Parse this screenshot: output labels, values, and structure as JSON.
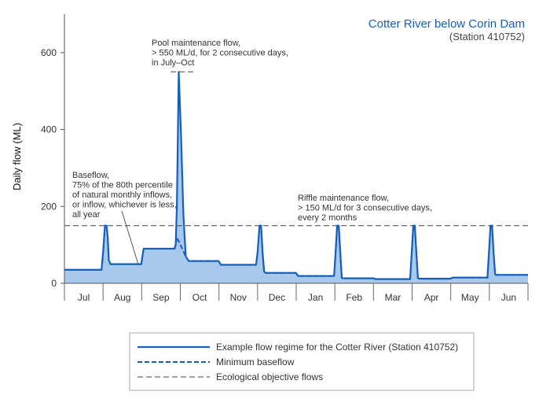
{
  "chart_data": {
    "type": "area",
    "title": "Cotter River below Corin Dam",
    "subtitle": "(Station 410752)",
    "ylabel": "Daily flow (ML)",
    "xlabel": "",
    "ylim": [
      0,
      700
    ],
    "yticks": [
      0,
      200,
      400,
      600
    ],
    "months": [
      "Jul",
      "Aug",
      "Sep",
      "Oct",
      "Nov",
      "Dec",
      "Jan",
      "Feb",
      "Mar",
      "Apr",
      "May",
      "Jun"
    ],
    "grid": false,
    "legend_position": "bottom",
    "colors": {
      "flow_line": "#1560bd",
      "flow_fill": "#a8c8ec",
      "baseline": "#1560bd",
      "objective": "#444444",
      "title": "#1560bd"
    },
    "series": [
      {
        "name": "Example flow regime for the Cotter River (Station 410752)",
        "style": "solid",
        "x": [
          0,
          0.5,
          0.96,
          1.0,
          1.05,
          1.09,
          1.12,
          1.15,
          1.19,
          1.25,
          1.5,
          1.99,
          2.05,
          2.5,
          2.85,
          2.88,
          2.91,
          2.96,
          3.02,
          3.08,
          3.14,
          3.22,
          3.3,
          3.5,
          3.99,
          4.05,
          4.5,
          4.96,
          5.0,
          5.05,
          5.09,
          5.13,
          5.17,
          5.21,
          5.5,
          5.99,
          6.05,
          6.5,
          6.98,
          7.02,
          7.06,
          7.1,
          7.14,
          7.18,
          7.22,
          7.5,
          7.99,
          8.05,
          8.5,
          8.95,
          8.99,
          9.03,
          9.07,
          9.11,
          9.15,
          9.19,
          9.5,
          9.99,
          10.05,
          10.5,
          10.95,
          10.99,
          11.03,
          11.07,
          11.11,
          11.15,
          11.19,
          11.5,
          12
        ],
        "y": [
          35,
          35,
          35,
          80,
          150,
          150,
          120,
          60,
          50,
          50,
          50,
          50,
          90,
          90,
          90,
          100,
          200,
          550,
          380,
          180,
          70,
          58,
          58,
          58,
          58,
          48,
          48,
          48,
          80,
          150,
          150,
          80,
          30,
          27,
          27,
          27,
          19,
          19,
          19,
          80,
          150,
          150,
          80,
          14,
          13,
          13,
          13,
          11,
          11,
          11,
          80,
          150,
          150,
          80,
          13,
          12,
          12,
          12,
          15,
          15,
          15,
          80,
          150,
          150,
          80,
          23,
          22,
          22,
          22
        ]
      },
      {
        "name": "Minimum baseflow",
        "style": "dashed",
        "x": [
          0,
          0.5,
          0.96,
          1.0,
          1.05,
          1.09,
          1.12,
          1.15,
          1.19,
          1.25,
          1.5,
          1.99,
          2.05,
          2.5,
          2.85,
          2.88,
          2.91,
          3.14,
          3.22,
          3.3,
          3.5,
          3.99,
          4.05,
          4.5,
          4.96,
          5.0,
          5.05,
          5.09,
          5.13,
          5.17,
          5.21,
          5.5,
          5.99,
          6.05,
          6.5,
          6.98,
          7.02,
          7.06,
          7.1,
          7.14,
          7.18,
          7.22,
          7.5,
          7.99,
          8.05,
          8.5,
          8.95,
          8.99,
          9.03,
          9.07,
          9.11,
          9.15,
          9.19,
          9.5,
          9.99,
          10.05,
          10.5,
          10.95,
          10.99,
          11.03,
          11.07,
          11.11,
          11.15,
          11.19,
          11.5,
          12
        ],
        "y": [
          35,
          35,
          35,
          80,
          150,
          150,
          120,
          60,
          50,
          50,
          50,
          50,
          90,
          90,
          90,
          100,
          120,
          70,
          58,
          58,
          58,
          58,
          48,
          48,
          48,
          80,
          150,
          150,
          80,
          30,
          27,
          27,
          27,
          19,
          19,
          19,
          80,
          150,
          150,
          80,
          14,
          13,
          13,
          13,
          11,
          11,
          11,
          80,
          150,
          150,
          80,
          13,
          12,
          12,
          12,
          15,
          15,
          15,
          80,
          150,
          150,
          80,
          23,
          22,
          22,
          22
        ]
      },
      {
        "name": "Ecological objective flows",
        "style": "dashed-thin",
        "x": [
          0,
          12
        ],
        "y": [
          150,
          150
        ]
      }
    ],
    "extra_lines": [
      {
        "x": [
          2.75,
          3.4
        ],
        "y": [
          550,
          550
        ]
      }
    ],
    "annotations": [
      {
        "lines": [
          "Pool maintenance flow,",
          "> 550 ML/d, for 2 consecutive days,",
          "in July–Oct"
        ]
      },
      {
        "lines": [
          "Baseflow,",
          "75% of the 80th percentile",
          "of natural monthly inflows,",
          "or inflow, whichever is less,",
          "all year"
        ]
      },
      {
        "lines": [
          "Riffle maintenance flow,",
          "> 150 ML/d for 3 consecutive days,",
          "every 2 months"
        ]
      }
    ]
  }
}
